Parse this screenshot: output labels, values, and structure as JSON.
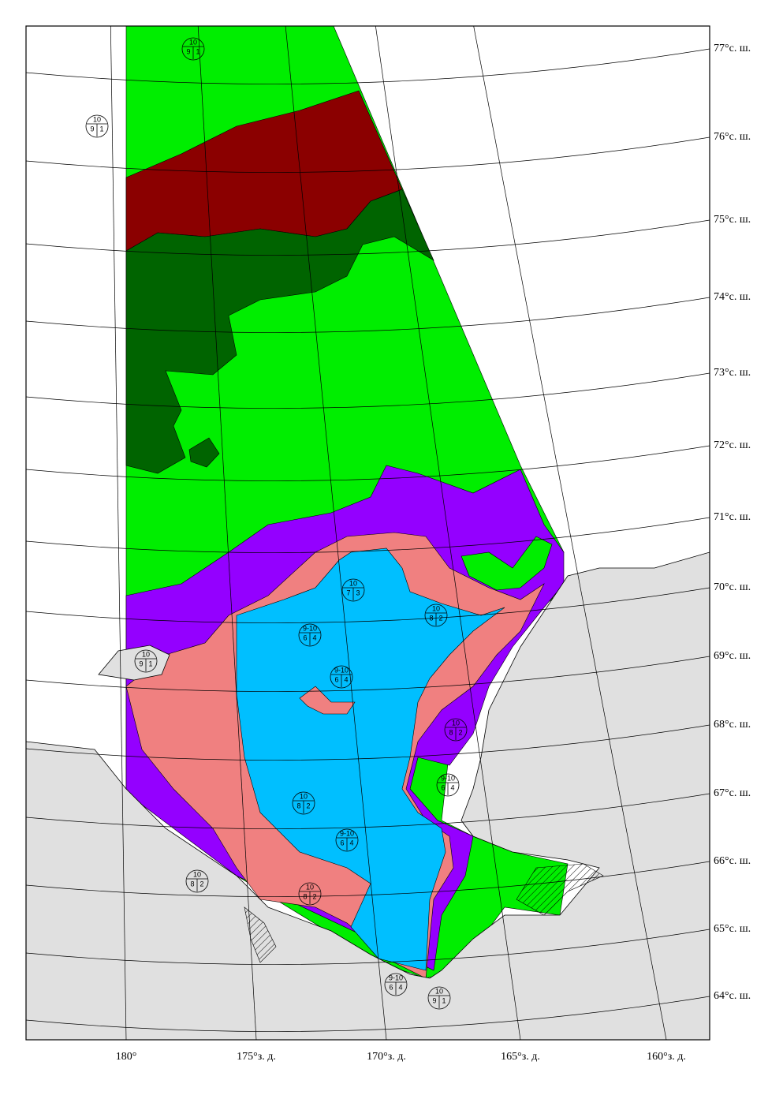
{
  "lat_labels": [
    "77°с. ш.",
    "76°с. ш.",
    "75°с. ш.",
    "74°с. ш.",
    "73°с. ш.",
    "72°с. ш.",
    "71°с. ш.",
    "70°с. ш.",
    "69°с. ш.",
    "68°с. ш.",
    "67°с. ш.",
    "66°с. ш.",
    "65°с. ш.",
    "64°с. ш."
  ],
  "lon_labels": [
    "180°",
    "175°з. д.",
    "170°з. д.",
    "165°з. д.",
    "160°з. д."
  ],
  "egg_codes": [
    {
      "top": "10",
      "left": "9",
      "right": "1"
    },
    {
      "top": "10",
      "left": "9",
      "right": "1"
    },
    {
      "top": "10",
      "left": "9",
      "right": "1"
    },
    {
      "top": "10",
      "left": "7",
      "right": "3"
    },
    {
      "top": "10",
      "left": "8",
      "right": "2"
    },
    {
      "top": "10",
      "left": "8",
      "right": "2"
    },
    {
      "top": "10",
      "left": "8",
      "right": "2"
    },
    {
      "top": "10",
      "left": "8",
      "right": "2"
    },
    {
      "top": "10",
      "left": "8",
      "right": "2"
    },
    {
      "top": "9-10",
      "left": "6",
      "right": "4"
    },
    {
      "top": "9-10",
      "left": "6",
      "right": "4"
    },
    {
      "top": "9-10",
      "left": "6",
      "right": "4"
    },
    {
      "top": "9-10",
      "left": "6",
      "right": "4"
    },
    {
      "top": "9-10",
      "left": "6",
      "right": "4"
    },
    {
      "top": "10",
      "left": "9",
      "right": "1"
    }
  ]
}
